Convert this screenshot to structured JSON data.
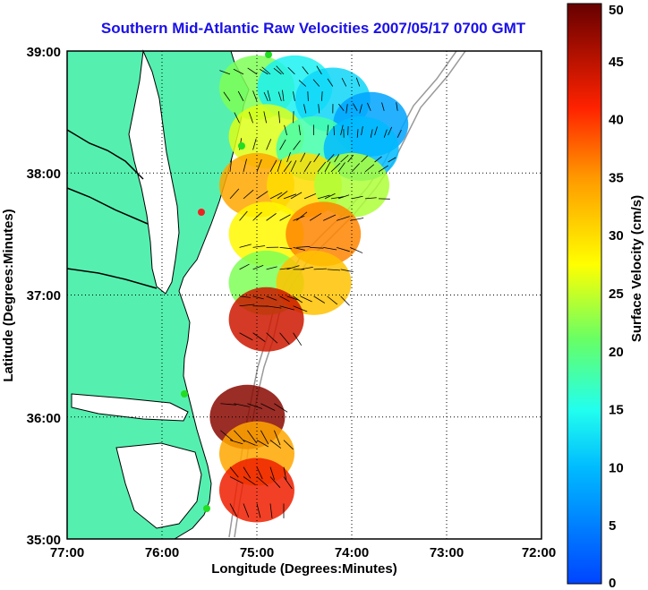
{
  "title": "Southern Mid-Atlantic Raw Velocities 2007/05/17 0700 GMT",
  "x_axis": {
    "label": "Longitude (Degrees:Minutes)",
    "ticks": [
      "77:00",
      "76:00",
      "75:00",
      "74:00",
      "73:00",
      "72:00"
    ]
  },
  "y_axis": {
    "label": "Latitude (Degrees:Minutes)",
    "ticks": [
      "39:00",
      "38:00",
      "37:00",
      "36:00",
      "35:00"
    ]
  },
  "colorbar": {
    "label": "Surface Velocity (cm/s)",
    "ticks": [
      "0",
      "5",
      "10",
      "15",
      "20",
      "25",
      "30",
      "35",
      "40",
      "45",
      "50"
    ],
    "range": [
      0,
      50
    ]
  },
  "colors": {
    "land": "#55f0b0",
    "title": "#1a10e8",
    "station": "#22dd22",
    "station_red": "#ee2222",
    "bathymetry": "#999999"
  },
  "chart_data": {
    "type": "heatmap",
    "lon_range": [
      -77,
      -72
    ],
    "lat_range": [
      35,
      39
    ],
    "cells": [
      {
        "lon": -75.0,
        "lat": 38.7,
        "v": 22
      },
      {
        "lon": -74.6,
        "lat": 38.7,
        "v": 14
      },
      {
        "lon": -74.2,
        "lat": 38.6,
        "v": 12
      },
      {
        "lon": -73.8,
        "lat": 38.4,
        "v": 8
      },
      {
        "lon": -74.9,
        "lat": 38.3,
        "v": 26
      },
      {
        "lon": -74.4,
        "lat": 38.2,
        "v": 18
      },
      {
        "lon": -73.9,
        "lat": 38.2,
        "v": 10
      },
      {
        "lon": -75.0,
        "lat": 37.9,
        "v": 34
      },
      {
        "lon": -74.5,
        "lat": 37.9,
        "v": 30
      },
      {
        "lon": -74.0,
        "lat": 37.9,
        "v": 24
      },
      {
        "lon": -74.9,
        "lat": 37.5,
        "v": 28
      },
      {
        "lon": -74.3,
        "lat": 37.5,
        "v": 36
      },
      {
        "lon": -74.9,
        "lat": 37.1,
        "v": 22
      },
      {
        "lon": -74.4,
        "lat": 37.1,
        "v": 32
      },
      {
        "lon": -74.9,
        "lat": 36.8,
        "v": 44
      },
      {
        "lon": -75.1,
        "lat": 36.0,
        "v": 48
      },
      {
        "lon": -75.0,
        "lat": 35.7,
        "v": 34
      },
      {
        "lon": -75.0,
        "lat": 35.4,
        "v": 42
      }
    ]
  }
}
